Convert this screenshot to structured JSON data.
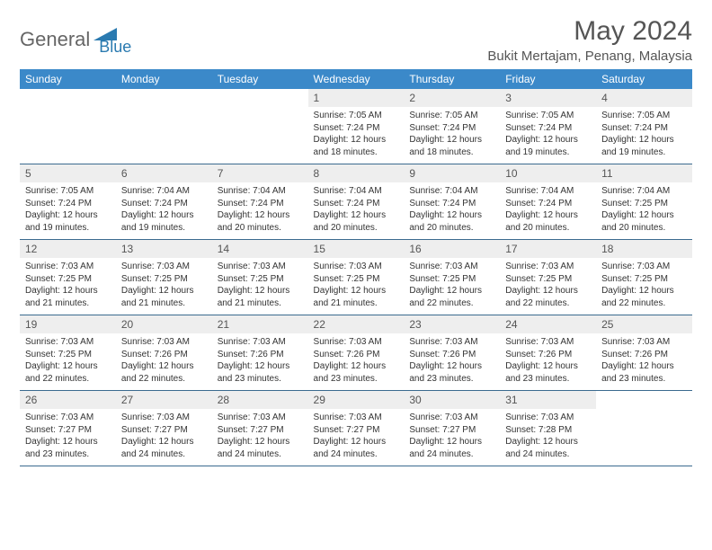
{
  "logo": {
    "text1": "General",
    "text2": "Blue"
  },
  "title": "May 2024",
  "location": "Bukit Mertajam, Penang, Malaysia",
  "colors": {
    "header_bg": "#3b89c9",
    "header_text": "#ffffff",
    "daynum_bg": "#eeeeee",
    "border": "#3b6b8f",
    "logo_gray": "#666666",
    "logo_blue": "#2a7ab0"
  },
  "typography": {
    "title_fontsize": 30,
    "location_fontsize": 15,
    "header_fontsize": 12,
    "daynum_fontsize": 12,
    "content_fontsize": 10
  },
  "layout": {
    "columns": 7,
    "rows": 5
  },
  "weekdays": [
    "Sunday",
    "Monday",
    "Tuesday",
    "Wednesday",
    "Thursday",
    "Friday",
    "Saturday"
  ],
  "days": [
    {
      "n": "",
      "sunrise": "",
      "sunset": "",
      "daylight": ""
    },
    {
      "n": "",
      "sunrise": "",
      "sunset": "",
      "daylight": ""
    },
    {
      "n": "",
      "sunrise": "",
      "sunset": "",
      "daylight": ""
    },
    {
      "n": "1",
      "sunrise": "7:05 AM",
      "sunset": "7:24 PM",
      "daylight": "12 hours and 18 minutes."
    },
    {
      "n": "2",
      "sunrise": "7:05 AM",
      "sunset": "7:24 PM",
      "daylight": "12 hours and 18 minutes."
    },
    {
      "n": "3",
      "sunrise": "7:05 AM",
      "sunset": "7:24 PM",
      "daylight": "12 hours and 19 minutes."
    },
    {
      "n": "4",
      "sunrise": "7:05 AM",
      "sunset": "7:24 PM",
      "daylight": "12 hours and 19 minutes."
    },
    {
      "n": "5",
      "sunrise": "7:05 AM",
      "sunset": "7:24 PM",
      "daylight": "12 hours and 19 minutes."
    },
    {
      "n": "6",
      "sunrise": "7:04 AM",
      "sunset": "7:24 PM",
      "daylight": "12 hours and 19 minutes."
    },
    {
      "n": "7",
      "sunrise": "7:04 AM",
      "sunset": "7:24 PM",
      "daylight": "12 hours and 20 minutes."
    },
    {
      "n": "8",
      "sunrise": "7:04 AM",
      "sunset": "7:24 PM",
      "daylight": "12 hours and 20 minutes."
    },
    {
      "n": "9",
      "sunrise": "7:04 AM",
      "sunset": "7:24 PM",
      "daylight": "12 hours and 20 minutes."
    },
    {
      "n": "10",
      "sunrise": "7:04 AM",
      "sunset": "7:24 PM",
      "daylight": "12 hours and 20 minutes."
    },
    {
      "n": "11",
      "sunrise": "7:04 AM",
      "sunset": "7:25 PM",
      "daylight": "12 hours and 20 minutes."
    },
    {
      "n": "12",
      "sunrise": "7:03 AM",
      "sunset": "7:25 PM",
      "daylight": "12 hours and 21 minutes."
    },
    {
      "n": "13",
      "sunrise": "7:03 AM",
      "sunset": "7:25 PM",
      "daylight": "12 hours and 21 minutes."
    },
    {
      "n": "14",
      "sunrise": "7:03 AM",
      "sunset": "7:25 PM",
      "daylight": "12 hours and 21 minutes."
    },
    {
      "n": "15",
      "sunrise": "7:03 AM",
      "sunset": "7:25 PM",
      "daylight": "12 hours and 21 minutes."
    },
    {
      "n": "16",
      "sunrise": "7:03 AM",
      "sunset": "7:25 PM",
      "daylight": "12 hours and 22 minutes."
    },
    {
      "n": "17",
      "sunrise": "7:03 AM",
      "sunset": "7:25 PM",
      "daylight": "12 hours and 22 minutes."
    },
    {
      "n": "18",
      "sunrise": "7:03 AM",
      "sunset": "7:25 PM",
      "daylight": "12 hours and 22 minutes."
    },
    {
      "n": "19",
      "sunrise": "7:03 AM",
      "sunset": "7:25 PM",
      "daylight": "12 hours and 22 minutes."
    },
    {
      "n": "20",
      "sunrise": "7:03 AM",
      "sunset": "7:26 PM",
      "daylight": "12 hours and 22 minutes."
    },
    {
      "n": "21",
      "sunrise": "7:03 AM",
      "sunset": "7:26 PM",
      "daylight": "12 hours and 23 minutes."
    },
    {
      "n": "22",
      "sunrise": "7:03 AM",
      "sunset": "7:26 PM",
      "daylight": "12 hours and 23 minutes."
    },
    {
      "n": "23",
      "sunrise": "7:03 AM",
      "sunset": "7:26 PM",
      "daylight": "12 hours and 23 minutes."
    },
    {
      "n": "24",
      "sunrise": "7:03 AM",
      "sunset": "7:26 PM",
      "daylight": "12 hours and 23 minutes."
    },
    {
      "n": "25",
      "sunrise": "7:03 AM",
      "sunset": "7:26 PM",
      "daylight": "12 hours and 23 minutes."
    },
    {
      "n": "26",
      "sunrise": "7:03 AM",
      "sunset": "7:27 PM",
      "daylight": "12 hours and 23 minutes."
    },
    {
      "n": "27",
      "sunrise": "7:03 AM",
      "sunset": "7:27 PM",
      "daylight": "12 hours and 24 minutes."
    },
    {
      "n": "28",
      "sunrise": "7:03 AM",
      "sunset": "7:27 PM",
      "daylight": "12 hours and 24 minutes."
    },
    {
      "n": "29",
      "sunrise": "7:03 AM",
      "sunset": "7:27 PM",
      "daylight": "12 hours and 24 minutes."
    },
    {
      "n": "30",
      "sunrise": "7:03 AM",
      "sunset": "7:27 PM",
      "daylight": "12 hours and 24 minutes."
    },
    {
      "n": "31",
      "sunrise": "7:03 AM",
      "sunset": "7:28 PM",
      "daylight": "12 hours and 24 minutes."
    },
    {
      "n": "",
      "sunrise": "",
      "sunset": "",
      "daylight": ""
    }
  ],
  "labels": {
    "sunrise": "Sunrise:",
    "sunset": "Sunset:",
    "daylight": "Daylight:"
  }
}
